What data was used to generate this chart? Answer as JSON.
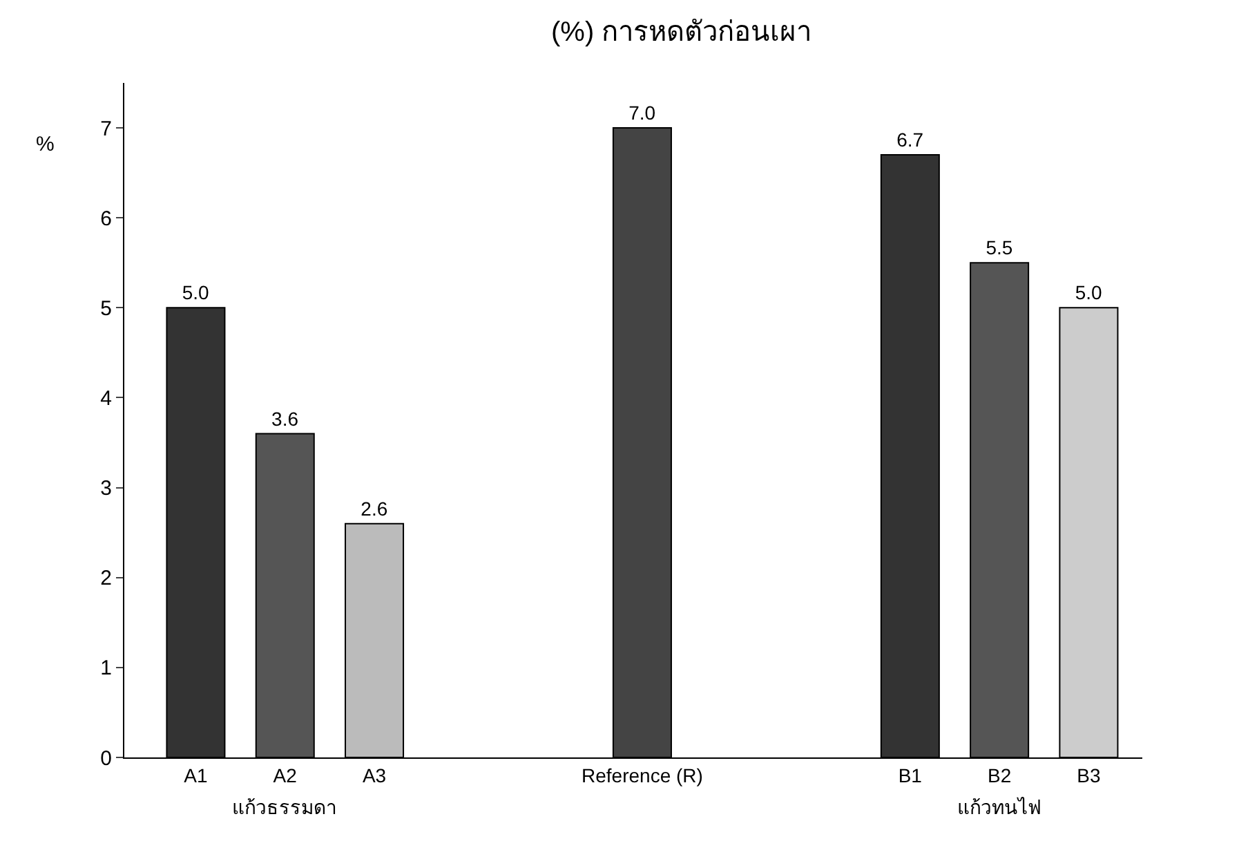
{
  "chart_data": {
    "type": "bar",
    "title": "(%) การหดตัวก่อนเผา",
    "ylabel": "%",
    "categories": [
      "A1",
      "A2",
      "A3",
      null,
      null,
      "Reference (R)",
      null,
      null,
      "B1",
      "B2",
      "B3"
    ],
    "values": [
      5.0,
      3.6,
      2.6,
      null,
      null,
      7.0,
      null,
      null,
      6.7,
      5.5,
      5.0
    ],
    "colors": [
      "#333333",
      "#555555",
      "#bbbbbb",
      "#ffffff",
      "#ffffff",
      "#444444",
      "#ffffff",
      "#ffffff",
      "#333333",
      "#555555",
      "#cccccc"
    ],
    "value_labels": [
      "5.0",
      "3.6",
      "2.6",
      null,
      null,
      "7.0",
      null,
      null,
      "6.7",
      "5.5",
      "5.0"
    ],
    "ylim": [
      0,
      7.5
    ],
    "yticks": [
      0,
      1,
      2,
      3,
      4,
      5,
      6,
      7
    ],
    "annotations": [
      "แก้วธรรมดา",
      "แก้วทนไฟ"
    ]
  }
}
